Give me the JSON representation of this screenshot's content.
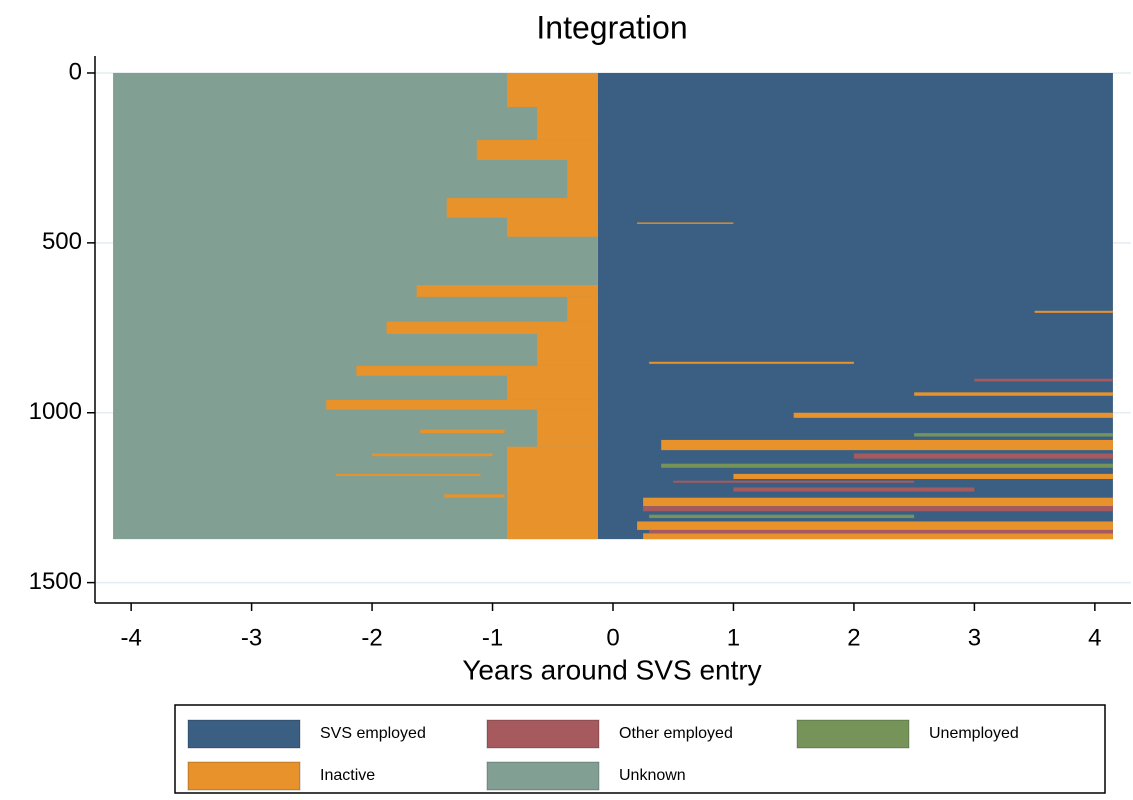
{
  "chart_data": {
    "type": "sequence-index",
    "title": "Integration",
    "xlabel": "Years around SVS entry",
    "xlim": [
      -4.3,
      4.3
    ],
    "xticks": [
      -4,
      -3,
      -2,
      -1,
      0,
      1,
      2,
      3,
      4
    ],
    "ylim": [
      -50,
      1560
    ],
    "yticks": [
      0,
      500,
      1000,
      1500
    ],
    "y_reversed": true,
    "grid": true,
    "legend": "bottom",
    "series": [
      {
        "name": "SVS employed",
        "color": "#3b5e83",
        "segments": [
          [
            -0.125,
            4.15,
            0,
            1372
          ]
        ]
      },
      {
        "name": "Other employed",
        "color": "#a65a5e",
        "segments": [
          [
            0.25,
            4.15,
            1275,
            1290
          ],
          [
            0.3,
            4.15,
            1345,
            1355
          ],
          [
            2.0,
            4.15,
            1120,
            1135
          ],
          [
            1.0,
            3.0,
            1220,
            1232
          ],
          [
            3.0,
            4.15,
            900,
            908
          ],
          [
            0.5,
            2.5,
            1200,
            1206
          ]
        ]
      },
      {
        "name": "Unemployed",
        "color": "#76945a",
        "segments": [
          [
            0.4,
            4.15,
            1150,
            1162
          ],
          [
            2.5,
            4.15,
            1060,
            1070
          ],
          [
            0.3,
            2.5,
            1300,
            1310
          ]
        ]
      },
      {
        "name": "Inactive",
        "color": "#e8922b",
        "segments": [
          [
            -0.88,
            -0.125,
            0,
            100
          ],
          [
            -0.63,
            -0.125,
            100,
            197
          ],
          [
            -1.13,
            -0.125,
            197,
            256
          ],
          [
            -0.38,
            -0.125,
            256,
            368
          ],
          [
            -1.38,
            -0.125,
            368,
            426
          ],
          [
            -0.88,
            -0.125,
            426,
            482
          ],
          [
            -1.63,
            -0.125,
            624,
            659
          ],
          [
            -0.38,
            -0.125,
            659,
            732
          ],
          [
            -1.88,
            -0.125,
            732,
            768
          ],
          [
            -0.63,
            -0.125,
            768,
            862
          ],
          [
            -2.13,
            -0.125,
            862,
            891
          ],
          [
            -0.88,
            -0.125,
            891,
            962
          ],
          [
            -2.38,
            -0.125,
            962,
            991
          ],
          [
            -0.63,
            -0.125,
            991,
            1100
          ],
          [
            -0.88,
            -0.125,
            1100,
            1372
          ],
          [
            -1.6,
            -0.9,
            1050,
            1060
          ],
          [
            -2.0,
            -1.0,
            1120,
            1128
          ],
          [
            -2.3,
            -1.1,
            1180,
            1186
          ],
          [
            -1.4,
            -0.9,
            1240,
            1250
          ],
          [
            0.4,
            4.15,
            1080,
            1110
          ],
          [
            0.25,
            4.15,
            1250,
            1275
          ],
          [
            0.2,
            4.15,
            1320,
            1345
          ],
          [
            1.5,
            4.15,
            1000,
            1015
          ],
          [
            2.5,
            4.15,
            940,
            950
          ],
          [
            0.3,
            2.0,
            850,
            856
          ],
          [
            3.5,
            4.15,
            700,
            706
          ],
          [
            0.2,
            1.0,
            440,
            444
          ],
          [
            1.0,
            4.15,
            1180,
            1195
          ],
          [
            0.25,
            4.15,
            1355,
            1372
          ]
        ]
      },
      {
        "name": "Unknown",
        "color": "#819f93",
        "segments": [
          [
            -4.15,
            -0.125,
            0,
            1372
          ]
        ]
      }
    ]
  }
}
